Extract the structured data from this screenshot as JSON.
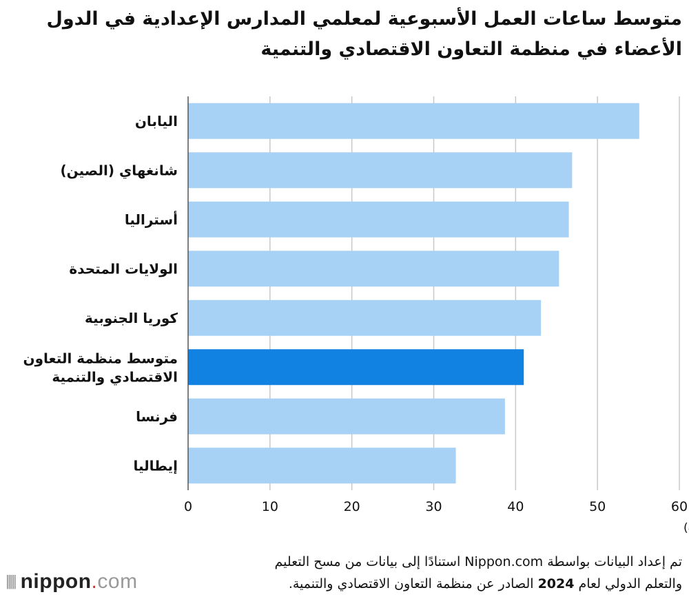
{
  "chart_data": {
    "type": "bar",
    "orientation": "horizontal",
    "title": "متوسط ساعات العمل الأسبوعية لمعلمي المدارس الإعدادية في الدول الأعضاء في منظمة التعاون الاقتصادي والتنمية",
    "categories": [
      "اليابان",
      "شانغهاي (الصين)",
      "أستراليا",
      "الولايات المتحدة",
      "كوريا الجنوبية",
      "متوسط منظمة التعاون الاقتصادي والتنمية",
      "فرنسا",
      "إيطاليا"
    ],
    "values": [
      55.1,
      46.9,
      46.5,
      45.3,
      43.1,
      41.0,
      38.7,
      32.7
    ],
    "highlight_index": 5,
    "xlim": [
      0,
      60
    ],
    "xticks": [
      0,
      10,
      20,
      30,
      40,
      50,
      60
    ],
    "xlabel": "(ساعات)",
    "grid": true,
    "colors": {
      "bar": "#a7d1f5",
      "highlight": "#1282e2",
      "grid": "#c8c8c8"
    }
  },
  "footer": {
    "source_line1": "تم إعداد البيانات بواسطة Nippon.com استنادًا إلى بيانات من مسح التعليم",
    "source_line2_pre": "والتعلم الدولي لعام ",
    "source_year": "2024",
    "source_line2_post": " الصادر عن منظمة التعاون الاقتصادي والتنمية.",
    "logo_main": "nippon",
    "logo_dot": ".",
    "logo_com": "com"
  }
}
